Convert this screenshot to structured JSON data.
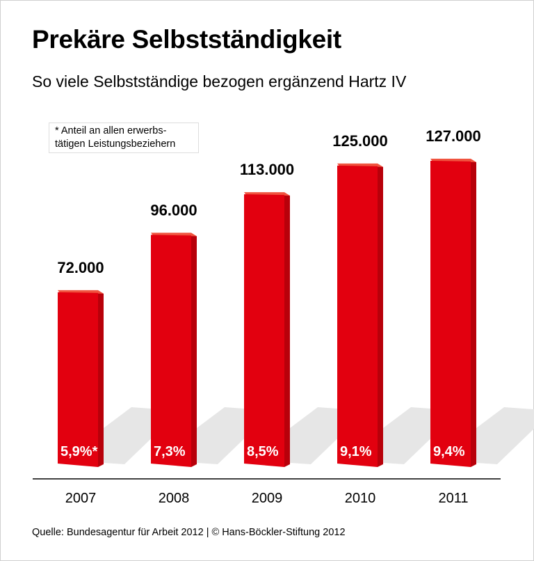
{
  "title": "Prekäre Selbstständigkeit",
  "subtitle": "So viele Selbstständige bezogen ergänzend Hartz IV",
  "note": "* Anteil an allen erwerbs- tätigen Leistungsbeziehern",
  "note_lines": [
    "* Anteil an allen erwerbs-",
    "tätigen Leistungsbeziehern"
  ],
  "source": "Quelle: Bundesagentur für Arbeit 2012 | © Hans-Böckler-Stiftung 2012",
  "colors": {
    "bar": "#e2000f",
    "bar_side": "#b8000a",
    "bar_top": "#f0533f",
    "shadow": "#e6e6e6"
  },
  "chart_data": {
    "type": "bar",
    "categories": [
      "2007",
      "2008",
      "2009",
      "2010",
      "2011"
    ],
    "values": [
      72000,
      96000,
      113000,
      125000,
      127000
    ],
    "value_labels": [
      "72.000",
      "96.000",
      "113.000",
      "125.000",
      "127.000"
    ],
    "share_labels": [
      "5,9%*",
      "7,3%",
      "8,5%",
      "9,1%",
      "9,4%"
    ],
    "title": "Prekäre Selbstständigkeit",
    "subtitle": "So viele Selbstständige bezogen ergänzend Hartz IV",
    "grid": false,
    "legend": "none",
    "ylim": [
      0,
      127000
    ]
  }
}
